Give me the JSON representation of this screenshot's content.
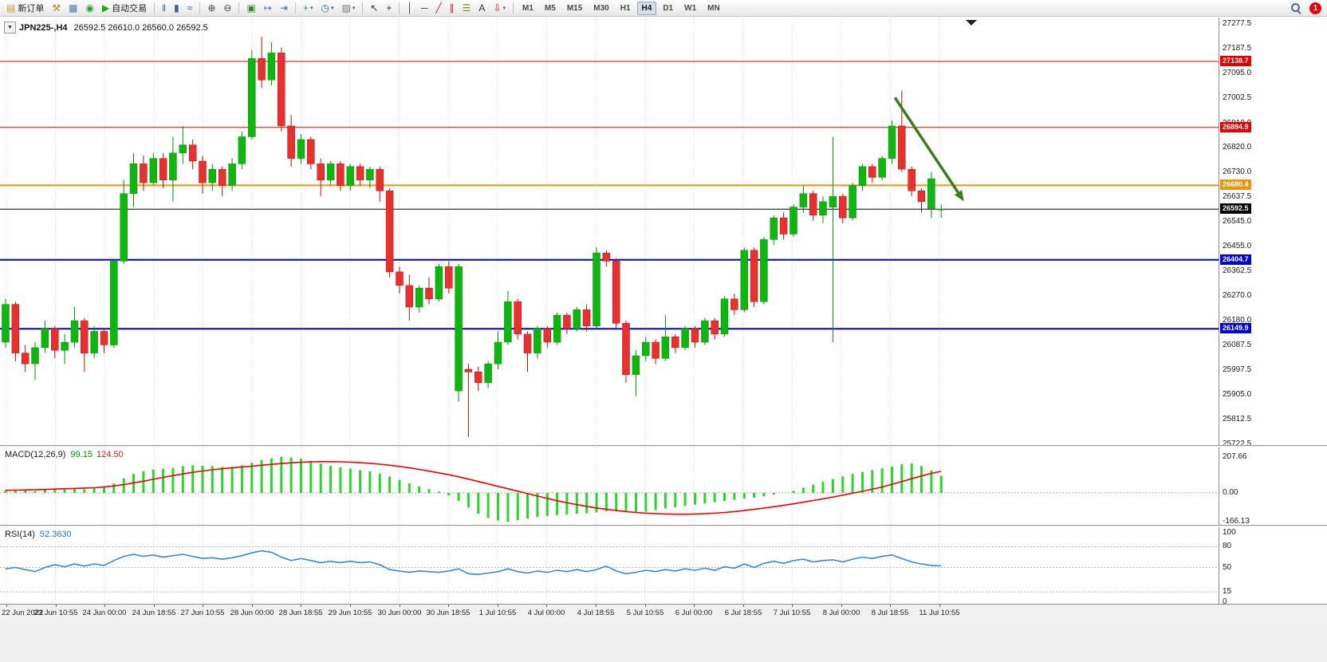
{
  "icons_note": "icon names map to glyphs in renderer",
  "toolbar": {
    "items": [
      {
        "t": "btn",
        "name": "new-order-button",
        "icon": "new-order-icon",
        "color": "#c8a028",
        "label": "新订单"
      },
      {
        "t": "btn",
        "name": "gavel-button",
        "icon": "gavel-icon",
        "color": "#b08820"
      },
      {
        "t": "btn",
        "name": "charts-window-button",
        "icon": "charts-window-icon",
        "color": "#5078b4"
      },
      {
        "t": "btn",
        "name": "market-watch-button",
        "icon": "market-watch-icon",
        "color": "#28a028"
      },
      {
        "t": "btn",
        "name": "autotrading-button",
        "icon": "autotrade-play-icon",
        "color": "#18a818",
        "label": "自动交易"
      },
      {
        "t": "sep"
      },
      {
        "t": "btn",
        "name": "bar-chart-type-button",
        "icon": "bars-type-icon",
        "color": "#40608a"
      },
      {
        "t": "btn",
        "name": "candlestick-type-button",
        "icon": "candles-type-icon",
        "color": "#40608a"
      },
      {
        "t": "btn",
        "name": "line-chart-type-button",
        "icon": "line-type-icon",
        "color": "#40608a"
      },
      {
        "t": "sep"
      },
      {
        "t": "btn",
        "name": "zoom-in-button",
        "icon": "zoom-in-icon",
        "color": "#444444"
      },
      {
        "t": "btn",
        "name": "zoom-out-button",
        "icon": "zoom-out-icon",
        "color": "#444444"
      },
      {
        "t": "sep"
      },
      {
        "t": "btn",
        "name": "tile-windows-button",
        "icon": "tile-windows-icon",
        "color": "#2e8b2e"
      },
      {
        "t": "btn",
        "name": "auto-scroll-button",
        "icon": "auto-scroll-icon",
        "color": "#3a6ea5"
      },
      {
        "t": "btn",
        "name": "chart-shift-button",
        "icon": "chart-shift-icon",
        "color": "#3a6ea5"
      },
      {
        "t": "sep"
      },
      {
        "t": "btn",
        "name": "indicators-button",
        "icon": "indicators-add-icon",
        "color": "#1f9e1f",
        "dd": true
      },
      {
        "t": "btn",
        "name": "periods-button",
        "icon": "periods-clock-icon",
        "color": "#3a6ea5",
        "dd": true
      },
      {
        "t": "btn",
        "name": "templates-button",
        "icon": "templates-icon",
        "color": "#777777",
        "dd": true
      },
      {
        "t": "sep"
      },
      {
        "t": "btn",
        "name": "cursor-button",
        "icon": "cursor-icon",
        "color": "#333333"
      },
      {
        "t": "btn",
        "name": "crosshair-button",
        "icon": "crosshair-icon",
        "color": "#333333"
      },
      {
        "t": "sep"
      },
      {
        "t": "btn",
        "name": "vertical-line-button",
        "icon": "vline-icon",
        "color": "#333333"
      },
      {
        "t": "btn",
        "name": "horizontal-line-button",
        "icon": "hline-icon",
        "color": "#333333"
      },
      {
        "t": "btn",
        "name": "trendline-button",
        "icon": "trendline-icon",
        "color": "#c22222"
      },
      {
        "t": "btn",
        "name": "channel-button",
        "icon": "channel-icon",
        "color": "#c22222"
      },
      {
        "t": "btn",
        "name": "fibonacci-button",
        "icon": "fibonacci-icon",
        "color": "#8a8a20"
      },
      {
        "t": "btn",
        "name": "text-button",
        "icon": "text-icon",
        "color": "#333333"
      },
      {
        "t": "btn",
        "name": "arrows-button",
        "icon": "arrow-objects-icon",
        "color": "#c22222",
        "dd": true
      },
      {
        "t": "sep"
      }
    ],
    "timeframes": [
      "M1",
      "M5",
      "M15",
      "M30",
      "H1",
      "H4",
      "D1",
      "W1",
      "MN"
    ],
    "active_timeframe": "H4",
    "notification_count": "1"
  },
  "chart": {
    "symbol_period": "JPN225-,H4",
    "ohlc_text": "26592.5 26610.0 26560.0 26592.5"
  },
  "macd_panel": {
    "title": "MACD(12,26,9)",
    "value_main": "99.15",
    "value_signal": "124.50",
    "axis_labels": [
      "207.66",
      "0.00",
      "-166.13"
    ],
    "axis_values": [
      207.66,
      0,
      -166.13
    ]
  },
  "rsi_panel": {
    "title": "RSI(14)",
    "value": "52.3630",
    "axis_labels": [
      "100",
      "80",
      "50",
      "15",
      "0"
    ],
    "axis_values": [
      100,
      80,
      50,
      15,
      0
    ],
    "level_lines": [
      80,
      50,
      15
    ]
  },
  "price_axis": {
    "labels": [
      "27277.5",
      "27187.5",
      "27095.0",
      "27002.5",
      "26910.0",
      "26820.0",
      "26730.0",
      "26637.5",
      "26545.0",
      "26455.0",
      "26362.5",
      "26270.0",
      "26180.0",
      "26087.5",
      "25997.5",
      "25905.0",
      "25812.5",
      "25722.5"
    ],
    "values": [
      27277.5,
      27187.5,
      27095.0,
      27002.5,
      26910.0,
      26820.0,
      26730.0,
      26637.5,
      26545.0,
      26455.0,
      26362.5,
      26270.0,
      26180.0,
      26087.5,
      25997.5,
      25905.0,
      25812.5,
      25722.5
    ]
  },
  "time_axis": {
    "labels": [
      "22 Jun 2022",
      "23 Jun 10:55",
      "24 Jun 00:00",
      "24 Jun 18:55",
      "27 Jun 10:55",
      "28 Jun 00:00",
      "28 Jun 18:55",
      "29 Jun 10:55",
      "30 Jun 00:00",
      "30 Jun 18:55",
      "1 Jul 10:55",
      "4 Jul 00:00",
      "4 Jul 18:55",
      "5 Jul 10:55",
      "6 Jul 00:00",
      "6 Jul 18:55",
      "7 Jul 10:55",
      "8 Jul 00:00",
      "8 Jul 18:55",
      "11 Jul 10:55"
    ]
  },
  "chart_data": {
    "type": "candlestick",
    "symbol": "JPN225-",
    "timeframe": "H4",
    "price_range": {
      "max": 27277.5,
      "min": 25722.5
    },
    "colors": {
      "bull": "#0fb60f",
      "bull_edge": "#0a8a0a",
      "bear": "#e83030",
      "bear_edge": "#b01212",
      "macd_hist": "#2fd32f",
      "macd_signal": "#f00000",
      "rsi_line": "#3a87d6",
      "grid": "#d9d9d9",
      "arrow": "#3c7a1e"
    },
    "hlines": [
      {
        "price": 27138.7,
        "label": "27138.7",
        "color": "#e00000",
        "width": 1
      },
      {
        "price": 26894.9,
        "label": "26894.9",
        "color": "#e00000",
        "width": 1
      },
      {
        "price": 26680.4,
        "label": "26680.4",
        "color": "#e8960c",
        "width": 2
      },
      {
        "price": 26592.5,
        "label": "26592.5",
        "color": "#000000",
        "width": 1
      },
      {
        "price": 26404.7,
        "label": "26404.7",
        "color": "#0000d0",
        "width": 2
      },
      {
        "price": 26149.9,
        "label": "26149.9",
        "color": "#0000d0",
        "width": 2
      }
    ],
    "annotation_arrow": {
      "from": {
        "bar": 90.3,
        "price": 27005
      },
      "to": {
        "bar": 97.3,
        "price": 26622
      }
    },
    "candles": [
      [
        26100,
        26260,
        26080,
        26240
      ],
      [
        26240,
        26250,
        26030,
        26060
      ],
      [
        26060,
        26090,
        25990,
        26020
      ],
      [
        26020,
        26100,
        25960,
        26080
      ],
      [
        26080,
        26180,
        26060,
        26150
      ],
      [
        26150,
        26160,
        26040,
        26070
      ],
      [
        26070,
        26130,
        26020,
        26100
      ],
      [
        26100,
        26230,
        26080,
        26180
      ],
      [
        26180,
        26190,
        25990,
        26060
      ],
      [
        26060,
        26160,
        26040,
        26140
      ],
      [
        26140,
        26150,
        26060,
        26090
      ],
      [
        26090,
        26410,
        26080,
        26400
      ],
      [
        26400,
        26700,
        26390,
        26650
      ],
      [
        26650,
        26800,
        26600,
        26760
      ],
      [
        26760,
        26790,
        26660,
        26690
      ],
      [
        26690,
        26800,
        26680,
        26780
      ],
      [
        26780,
        26800,
        26670,
        26700
      ],
      [
        26700,
        26860,
        26620,
        26800
      ],
      [
        26800,
        26900,
        26760,
        26830
      ],
      [
        26830,
        26850,
        26740,
        26770
      ],
      [
        26770,
        26790,
        26650,
        26690
      ],
      [
        26690,
        26760,
        26660,
        26740
      ],
      [
        26740,
        26750,
        26640,
        26680
      ],
      [
        26680,
        26780,
        26660,
        26760
      ],
      [
        26760,
        26880,
        26740,
        26860
      ],
      [
        26860,
        27180,
        26850,
        27150
      ],
      [
        27150,
        27230,
        27040,
        27070
      ],
      [
        27070,
        27210,
        27050,
        27170
      ],
      [
        27170,
        27190,
        26880,
        26900
      ],
      [
        26900,
        26940,
        26750,
        26780
      ],
      [
        26780,
        26870,
        26760,
        26850
      ],
      [
        26850,
        26860,
        26740,
        26760
      ],
      [
        26760,
        26780,
        26640,
        26700
      ],
      [
        26700,
        26770,
        26680,
        26760
      ],
      [
        26760,
        26770,
        26660,
        26680
      ],
      [
        26680,
        26760,
        26660,
        26750
      ],
      [
        26750,
        26760,
        26680,
        26700
      ],
      [
        26700,
        26750,
        26670,
        26740
      ],
      [
        26740,
        26750,
        26620,
        26660
      ],
      [
        26660,
        26670,
        26340,
        26360
      ],
      [
        26360,
        26380,
        26280,
        26310
      ],
      [
        26310,
        26350,
        26180,
        26230
      ],
      [
        26230,
        26310,
        26210,
        26300
      ],
      [
        26300,
        26340,
        26240,
        26260
      ],
      [
        26260,
        26390,
        26250,
        26380
      ],
      [
        26380,
        26400,
        26280,
        26300
      ],
      [
        25920,
        26390,
        25880,
        26380
      ],
      [
        26000,
        26020,
        25750,
        25990
      ],
      [
        25990,
        26010,
        25920,
        25950
      ],
      [
        25950,
        26030,
        25930,
        26020
      ],
      [
        26020,
        26140,
        26000,
        26100
      ],
      [
        26100,
        26290,
        26090,
        26250
      ],
      [
        26250,
        26260,
        26110,
        26130
      ],
      [
        26130,
        26140,
        25990,
        26060
      ],
      [
        26060,
        26160,
        26040,
        26150
      ],
      [
        26150,
        26160,
        26080,
        26100
      ],
      [
        26100,
        26210,
        26090,
        26200
      ],
      [
        26200,
        26210,
        26130,
        26150
      ],
      [
        26150,
        26230,
        26140,
        26220
      ],
      [
        26220,
        26240,
        26140,
        26160
      ],
      [
        26160,
        26450,
        26150,
        26430
      ],
      [
        26430,
        26440,
        26380,
        26400
      ],
      [
        26400,
        26410,
        26150,
        26170
      ],
      [
        26170,
        26180,
        25950,
        25980
      ],
      [
        25980,
        26070,
        25900,
        26050
      ],
      [
        26050,
        26120,
        26030,
        26100
      ],
      [
        26100,
        26110,
        26020,
        26040
      ],
      [
        26040,
        26200,
        26030,
        26120
      ],
      [
        26120,
        26130,
        26060,
        26080
      ],
      [
        26080,
        26160,
        26070,
        26150
      ],
      [
        26150,
        26160,
        26080,
        26100
      ],
      [
        26100,
        26190,
        26090,
        26180
      ],
      [
        26180,
        26190,
        26110,
        26130
      ],
      [
        26130,
        26270,
        26120,
        26260
      ],
      [
        26260,
        26280,
        26200,
        26220
      ],
      [
        26220,
        26450,
        26210,
        26440
      ],
      [
        26440,
        26450,
        26230,
        26250
      ],
      [
        26250,
        26490,
        26240,
        26480
      ],
      [
        26480,
        26570,
        26460,
        26560
      ],
      [
        26560,
        26580,
        26480,
        26500
      ],
      [
        26500,
        26610,
        26490,
        26600
      ],
      [
        26600,
        26680,
        26580,
        26650
      ],
      [
        26650,
        26660,
        26550,
        26570
      ],
      [
        26570,
        26640,
        26540,
        26620
      ],
      [
        26600,
        26860,
        26100,
        26640
      ],
      [
        26640,
        26650,
        26540,
        26560
      ],
      [
        26560,
        26690,
        26550,
        26680
      ],
      [
        26680,
        26760,
        26660,
        26750
      ],
      [
        26750,
        26760,
        26690,
        26710
      ],
      [
        26710,
        26790,
        26700,
        26780
      ],
      [
        26780,
        26920,
        26760,
        26900
      ],
      [
        26900,
        27030,
        26730,
        26740
      ],
      [
        26740,
        26750,
        26640,
        26660
      ],
      [
        26660,
        26670,
        26580,
        26620
      ],
      [
        26595,
        26730,
        26560,
        26705
      ],
      [
        26592.5,
        26610,
        26560,
        26592.5
      ]
    ],
    "indicators": {
      "macd": {
        "params": "12,26,9",
        "histogram": [
          15,
          18,
          14,
          10,
          16,
          22,
          20,
          25,
          22,
          28,
          35,
          55,
          85,
          110,
          125,
          135,
          140,
          145,
          155,
          160,
          158,
          155,
          150,
          152,
          160,
          175,
          190,
          200,
          207.66,
          205,
          198,
          185,
          170,
          158,
          148,
          140,
          132,
          125,
          112,
          95,
          75,
          55,
          38,
          22,
          8,
          -15,
          -45,
          -85,
          -120,
          -145,
          -160,
          -166.13,
          -158,
          -148,
          -140,
          -133,
          -128,
          -124,
          -121,
          -118,
          -113,
          -106,
          -100,
          -107,
          -114,
          -109,
          -100,
          -90,
          -82,
          -75,
          -68,
          -60,
          -54,
          -47,
          -40,
          -33,
          -28,
          -20,
          -10,
          0,
          12,
          30,
          48,
          65,
          80,
          95,
          110,
          122,
          132,
          142,
          152,
          165,
          170,
          155,
          130,
          99.15
        ],
        "signal": [
          15,
          16,
          17,
          18,
          20,
          22,
          24,
          26,
          28,
          30,
          34,
          40,
          48,
          58,
          68,
          79,
          90,
          100,
          110,
          119,
          127,
          134,
          140,
          145,
          150,
          155,
          160,
          165,
          170,
          174,
          177,
          180,
          181,
          181,
          180,
          178,
          175,
          171,
          166,
          160,
          153,
          145,
          136,
          126,
          116,
          105,
          93,
          80,
          66,
          52,
          38,
          24,
          10,
          -4,
          -18,
          -32,
          -45,
          -57,
          -68,
          -78,
          -87,
          -95,
          -102,
          -108,
          -113,
          -117,
          -120,
          -122,
          -123,
          -123,
          -122,
          -120,
          -117,
          -113,
          -108,
          -102,
          -95,
          -88,
          -80,
          -72,
          -63,
          -54,
          -44,
          -34,
          -24,
          -13,
          -2,
          9,
          21,
          34,
          50,
          65,
          82,
          98,
          113,
          124.5
        ]
      },
      "rsi": {
        "period": "14",
        "values": [
          48,
          50,
          47,
          44,
          50,
          54,
          51,
          55,
          52,
          55,
          53,
          60,
          66,
          69,
          66,
          68,
          65,
          67,
          69,
          66,
          63,
          64,
          62,
          64,
          67,
          71,
          74,
          72,
          65,
          60,
          63,
          60,
          57,
          59,
          57,
          59,
          57,
          58,
          54,
          47,
          45,
          43,
          45,
          44,
          43,
          45,
          48,
          41,
          40,
          42,
          44,
          48,
          44,
          42,
          45,
          43,
          46,
          44,
          47,
          44,
          47,
          52,
          45,
          41,
          43,
          46,
          44,
          47,
          45,
          48,
          46,
          49,
          46,
          51,
          49,
          55,
          50,
          56,
          59,
          56,
          60,
          62,
          58,
          60,
          61,
          58,
          62,
          65,
          63,
          66,
          68,
          63,
          58,
          55,
          53,
          52.36
        ]
      }
    }
  }
}
